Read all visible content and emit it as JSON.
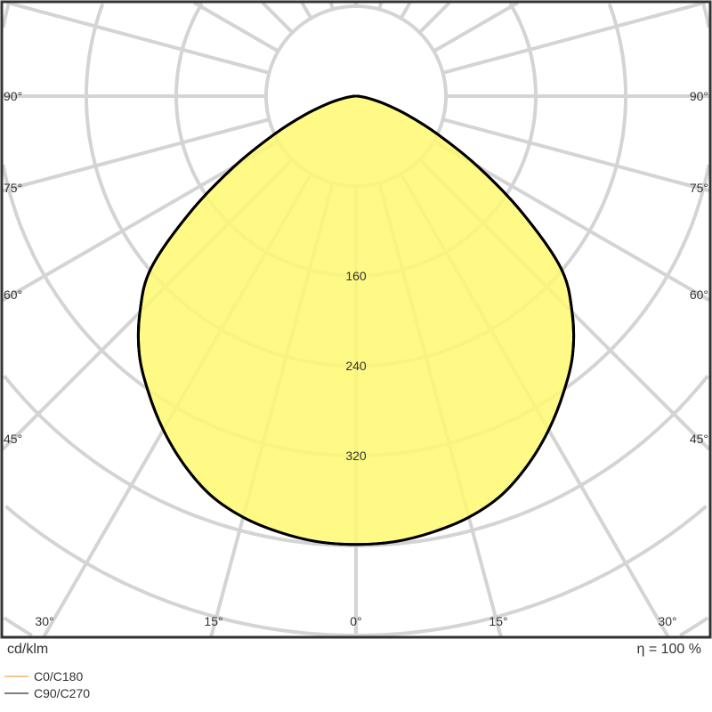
{
  "chart_data": {
    "type": "polar",
    "unit_label": "cd/klm",
    "efficiency_label": "η = 100 %",
    "radial_ticks": [
      80,
      160,
      240,
      320,
      400,
      480,
      560,
      640
    ],
    "radial_tick_labels": [
      "160",
      "240",
      "320"
    ],
    "angle_step_deg": 15,
    "angle_labels_bottom": [
      "30°",
      "15°",
      "0°",
      "15°",
      "30°"
    ],
    "angle_labels_side": [
      "90°",
      "75°",
      "60°",
      "45°"
    ],
    "grid": true,
    "legend_placement": "bottom-left",
    "series": [
      {
        "name": "C0/C180",
        "color": "#f5b070",
        "angles": [
          0,
          5,
          10,
          15,
          20,
          25,
          30,
          35,
          40,
          45,
          50,
          55,
          60,
          65,
          70,
          75,
          80,
          85,
          90
        ],
        "values": [
          399,
          398,
          394,
          388,
          378,
          362,
          343,
          322,
          300,
          272,
          238,
          180,
          125,
          80,
          48,
          26,
          12,
          4,
          0
        ]
      },
      {
        "name": "C90/C270",
        "color": "#555555",
        "angles": [
          0,
          5,
          10,
          15,
          20,
          25,
          30,
          35,
          40,
          45,
          50,
          55,
          60,
          65,
          70,
          75,
          80,
          85,
          90
        ],
        "values": [
          399,
          398,
          394,
          388,
          378,
          362,
          343,
          322,
          300,
          272,
          238,
          180,
          125,
          80,
          48,
          26,
          12,
          4,
          0
        ]
      }
    ],
    "fill_color": "#fff870",
    "outline_color": "#000000",
    "grid_color": "#d4d4d4"
  }
}
